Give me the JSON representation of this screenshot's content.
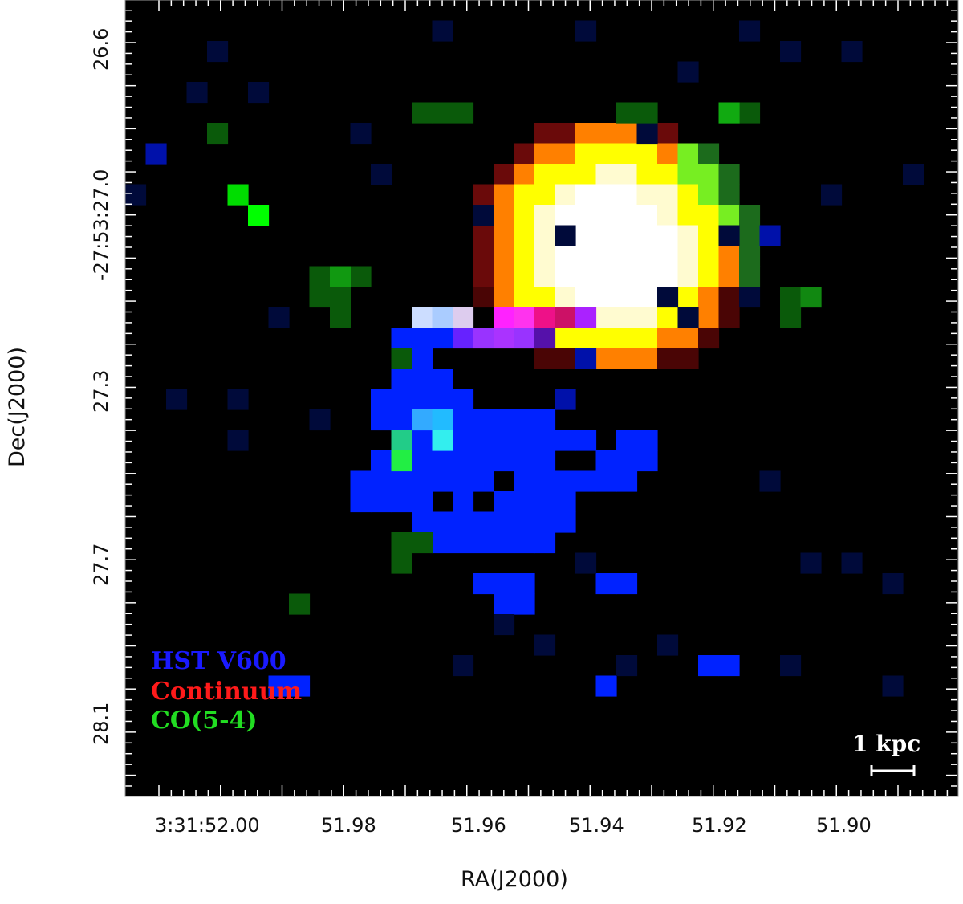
{
  "axes": {
    "xlabel": "RA(J2000)",
    "ylabel": "Dec(J2000)",
    "xticks": [
      "3:31:52.00",
      "51.98",
      "51.96",
      "51.94",
      "51.92",
      "51.90"
    ],
    "yticks": [
      "26.6",
      "-27:53:27.0",
      "27.3",
      "27.7",
      "28.1"
    ]
  },
  "legend": [
    {
      "label": "HST  V600",
      "color": "#1a1aff"
    },
    {
      "label": "Continuum",
      "color": "#ff1a1a"
    },
    {
      "label": "CO(5-4)",
      "color": "#22dd22"
    }
  ],
  "scalebar": {
    "label": "1  kpc"
  },
  "colors": {
    "background": "#000000",
    "hst": "#0000ff",
    "continuum": "#ff0000",
    "co": "#00ff00"
  }
}
